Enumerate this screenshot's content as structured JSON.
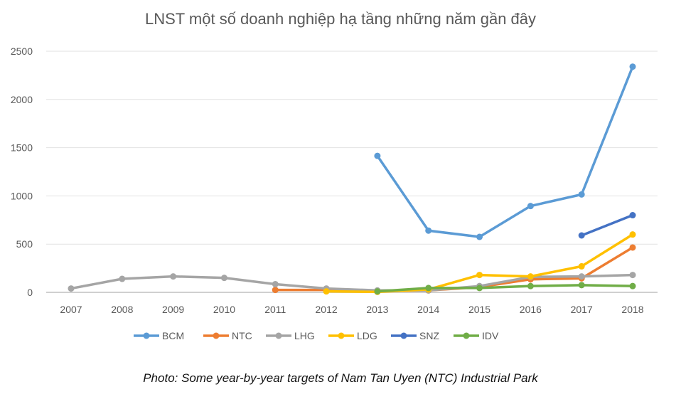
{
  "chart_data": {
    "type": "line",
    "title": "LNST một số doanh nghiệp hạ tầng những năm gần đây",
    "xlabel": "",
    "ylabel": "",
    "categories": [
      "2007",
      "2008",
      "2009",
      "2010",
      "2011",
      "2012",
      "2013",
      "2014",
      "2015",
      "2016",
      "2017",
      "2018"
    ],
    "ylim": [
      0,
      2500
    ],
    "yticks": [
      "0",
      "500",
      "1000",
      "1500",
      "2000",
      "2500"
    ],
    "grid": true,
    "legend": "bottom",
    "series": [
      {
        "name": "BCM",
        "color": "#5B9BD5",
        "values": [
          null,
          null,
          null,
          null,
          null,
          null,
          1415,
          640,
          575,
          895,
          1015,
          2340
        ]
      },
      {
        "name": "NTC",
        "color": "#ED7D31",
        "values": [
          null,
          null,
          null,
          null,
          25,
          25,
          15,
          20,
          55,
          135,
          145,
          465
        ]
      },
      {
        "name": "LHG",
        "color": "#A5A5A5",
        "values": [
          40,
          140,
          165,
          150,
          85,
          40,
          20,
          20,
          65,
          160,
          165,
          180
        ]
      },
      {
        "name": "LDG",
        "color": "#FFC000",
        "values": [
          null,
          null,
          null,
          null,
          null,
          10,
          5,
          30,
          180,
          165,
          270,
          600
        ]
      },
      {
        "name": "SNZ",
        "color": "#4472C4",
        "values": [
          null,
          null,
          null,
          null,
          null,
          null,
          null,
          null,
          null,
          null,
          590,
          800
        ]
      },
      {
        "name": "IDV",
        "color": "#70AD47",
        "values": [
          null,
          null,
          null,
          null,
          null,
          null,
          10,
          45,
          45,
          65,
          75,
          65
        ]
      }
    ]
  },
  "caption": "Photo: Some year-by-year targets of Nam Tan Uyen (NTC) Industrial Park"
}
